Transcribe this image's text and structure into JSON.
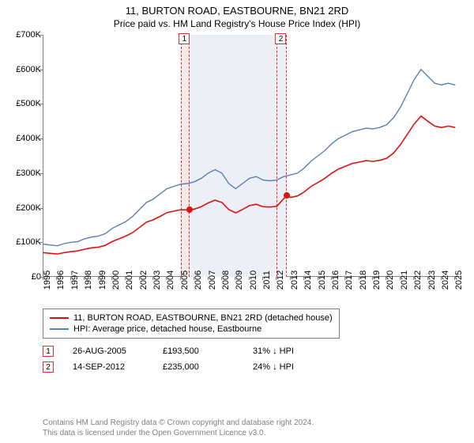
{
  "title": "11, BURTON ROAD, EASTBOURNE, BN21 2RD",
  "subtitle": "Price paid vs. HM Land Registry's House Price Index (HPI)",
  "chart": {
    "type": "line",
    "background_color": "#ffffff",
    "axis_color": "#808080",
    "text_color": "#000000",
    "font_size_labels": 11,
    "x_range": [
      1995,
      2025.5
    ],
    "y_range": [
      0,
      700000
    ],
    "y_ticks": [
      0,
      100000,
      200000,
      300000,
      400000,
      500000,
      600000,
      700000
    ],
    "y_tick_labels": [
      "£0",
      "£100K",
      "£200K",
      "£300K",
      "£400K",
      "£500K",
      "£600K",
      "£700K"
    ],
    "x_ticks": [
      1995,
      1996,
      1997,
      1998,
      1999,
      2000,
      2001,
      2002,
      2003,
      2004,
      2005,
      2006,
      2007,
      2008,
      2009,
      2010,
      2011,
      2012,
      2013,
      2014,
      2015,
      2016,
      2017,
      2018,
      2019,
      2020,
      2021,
      2022,
      2023,
      2024,
      2025
    ],
    "sale_bands": [
      {
        "idx": "1",
        "x_start": 2005.0,
        "x_end": 2005.65,
        "color": "#e62e2e",
        "fill": "#f7e9e9"
      },
      {
        "idx": "2",
        "x_start": 2012.0,
        "x_end": 2012.7,
        "color": "#e62e2e",
        "fill": "#eceff5"
      }
    ],
    "mid_band": {
      "x_start": 2005.65,
      "x_end": 2012.0,
      "fill": "#eceff5"
    },
    "series": [
      {
        "name": "hpi",
        "label": "HPI: Average price, detached house, Eastbourne",
        "color": "#5b7fb2",
        "line_width": 1.4,
        "data": [
          [
            1995.0,
            95000
          ],
          [
            1995.5,
            92000
          ],
          [
            1996.0,
            90000
          ],
          [
            1996.5,
            96000
          ],
          [
            1997.0,
            100000
          ],
          [
            1997.5,
            102000
          ],
          [
            1998.0,
            110000
          ],
          [
            1998.5,
            115000
          ],
          [
            1999.0,
            118000
          ],
          [
            1999.5,
            125000
          ],
          [
            2000.0,
            140000
          ],
          [
            2000.5,
            150000
          ],
          [
            2001.0,
            160000
          ],
          [
            2001.5,
            175000
          ],
          [
            2002.0,
            195000
          ],
          [
            2002.5,
            215000
          ],
          [
            2003.0,
            225000
          ],
          [
            2003.5,
            240000
          ],
          [
            2004.0,
            255000
          ],
          [
            2004.5,
            262000
          ],
          [
            2005.0,
            268000
          ],
          [
            2005.5,
            270000
          ],
          [
            2006.0,
            275000
          ],
          [
            2006.5,
            285000
          ],
          [
            2007.0,
            300000
          ],
          [
            2007.5,
            310000
          ],
          [
            2008.0,
            300000
          ],
          [
            2008.5,
            270000
          ],
          [
            2009.0,
            255000
          ],
          [
            2009.5,
            270000
          ],
          [
            2010.0,
            285000
          ],
          [
            2010.5,
            290000
          ],
          [
            2011.0,
            280000
          ],
          [
            2011.5,
            278000
          ],
          [
            2012.0,
            280000
          ],
          [
            2012.5,
            290000
          ],
          [
            2013.0,
            295000
          ],
          [
            2013.5,
            300000
          ],
          [
            2014.0,
            315000
          ],
          [
            2014.5,
            335000
          ],
          [
            2015.0,
            350000
          ],
          [
            2015.5,
            365000
          ],
          [
            2016.0,
            385000
          ],
          [
            2016.5,
            400000
          ],
          [
            2017.0,
            410000
          ],
          [
            2017.5,
            420000
          ],
          [
            2018.0,
            425000
          ],
          [
            2018.5,
            430000
          ],
          [
            2019.0,
            428000
          ],
          [
            2019.5,
            432000
          ],
          [
            2020.0,
            440000
          ],
          [
            2020.5,
            460000
          ],
          [
            2021.0,
            490000
          ],
          [
            2021.5,
            530000
          ],
          [
            2022.0,
            570000
          ],
          [
            2022.5,
            600000
          ],
          [
            2023.0,
            580000
          ],
          [
            2023.5,
            560000
          ],
          [
            2024.0,
            555000
          ],
          [
            2024.5,
            560000
          ],
          [
            2025.0,
            555000
          ]
        ]
      },
      {
        "name": "property",
        "label": "11, BURTON ROAD, EASTBOURNE, BN21 2RD (detached house)",
        "color": "#d91414",
        "line_width": 1.6,
        "data": [
          [
            1995.0,
            70000
          ],
          [
            1995.5,
            68000
          ],
          [
            1996.0,
            66000
          ],
          [
            1996.5,
            70000
          ],
          [
            1997.0,
            73000
          ],
          [
            1997.5,
            75000
          ],
          [
            1998.0,
            80000
          ],
          [
            1998.5,
            84000
          ],
          [
            1999.0,
            86000
          ],
          [
            1999.5,
            91000
          ],
          [
            2000.0,
            102000
          ],
          [
            2000.5,
            110000
          ],
          [
            2001.0,
            118000
          ],
          [
            2001.5,
            128000
          ],
          [
            2002.0,
            143000
          ],
          [
            2002.5,
            158000
          ],
          [
            2003.0,
            165000
          ],
          [
            2003.5,
            175000
          ],
          [
            2004.0,
            186000
          ],
          [
            2004.5,
            190000
          ],
          [
            2005.0,
            194000
          ],
          [
            2005.65,
            193500
          ],
          [
            2006.0,
            196000
          ],
          [
            2006.5,
            203000
          ],
          [
            2007.0,
            214000
          ],
          [
            2007.5,
            222000
          ],
          [
            2008.0,
            215000
          ],
          [
            2008.5,
            195000
          ],
          [
            2009.0,
            185000
          ],
          [
            2009.5,
            195000
          ],
          [
            2010.0,
            206000
          ],
          [
            2010.5,
            210000
          ],
          [
            2011.0,
            203000
          ],
          [
            2011.5,
            202000
          ],
          [
            2012.0,
            204000
          ],
          [
            2012.7,
            235000
          ],
          [
            2013.0,
            230000
          ],
          [
            2013.5,
            234000
          ],
          [
            2014.0,
            246000
          ],
          [
            2014.5,
            262000
          ],
          [
            2015.0,
            273000
          ],
          [
            2015.5,
            285000
          ],
          [
            2016.0,
            300000
          ],
          [
            2016.5,
            312000
          ],
          [
            2017.0,
            320000
          ],
          [
            2017.5,
            328000
          ],
          [
            2018.0,
            332000
          ],
          [
            2018.5,
            336000
          ],
          [
            2019.0,
            334000
          ],
          [
            2019.5,
            337000
          ],
          [
            2020.0,
            343000
          ],
          [
            2020.5,
            358000
          ],
          [
            2021.0,
            382000
          ],
          [
            2021.5,
            412000
          ],
          [
            2022.0,
            442000
          ],
          [
            2022.5,
            465000
          ],
          [
            2023.0,
            450000
          ],
          [
            2023.5,
            436000
          ],
          [
            2024.0,
            432000
          ],
          [
            2024.5,
            436000
          ],
          [
            2025.0,
            432000
          ]
        ]
      }
    ],
    "sale_points": [
      {
        "x": 2005.65,
        "y": 193500,
        "color": "#d91414"
      },
      {
        "x": 2012.7,
        "y": 235000,
        "color": "#d91414"
      }
    ]
  },
  "legend": {
    "border_color": "#808080",
    "items": [
      {
        "color": "#d91414",
        "label": "11, BURTON ROAD, EASTBOURNE, BN21 2RD (detached house)"
      },
      {
        "color": "#5b7fb2",
        "label": "HPI: Average price, detached house, Eastbourne"
      }
    ]
  },
  "sales_table": {
    "rows": [
      {
        "marker": "1",
        "marker_color": "#e62e2e",
        "date": "26-AUG-2005",
        "price": "£193,500",
        "delta": "31% ↓ HPI"
      },
      {
        "marker": "2",
        "marker_color": "#e62e2e",
        "date": "14-SEP-2012",
        "price": "£235,000",
        "delta": "24% ↓ HPI"
      }
    ]
  },
  "footer": {
    "line1": "Contains HM Land Registry data © Crown copyright and database right 2024.",
    "line2": "This data is licensed under the Open Government Licence v3.0."
  }
}
